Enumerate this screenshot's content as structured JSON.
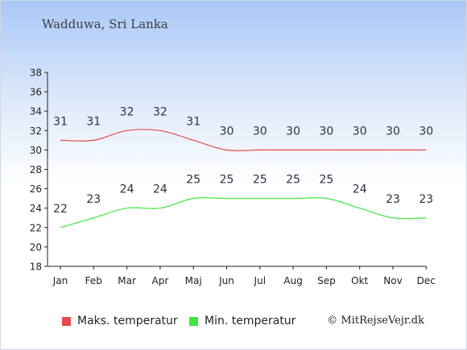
{
  "title": "Wadduwa, Sri Lanka",
  "copyright": "© MitRejseVejr.dk",
  "chart_data": {
    "type": "line",
    "categories": [
      "Jan",
      "Feb",
      "Mar",
      "Apr",
      "Maj",
      "Jun",
      "Jul",
      "Aug",
      "Sep",
      "Okt",
      "Nov",
      "Dec"
    ],
    "ylim": [
      18,
      38
    ],
    "yticks": [
      18,
      20,
      22,
      24,
      26,
      28,
      30,
      32,
      34,
      36,
      38
    ],
    "grid": false,
    "legend_placement": "bottom",
    "series": [
      {
        "name": "Maks. temperatur",
        "color": "#e64c4c",
        "values": [
          31,
          31,
          32,
          32,
          31,
          30,
          30,
          30,
          30,
          30,
          30,
          30
        ]
      },
      {
        "name": "Min. temperatur",
        "color": "#3ee63e",
        "values": [
          22,
          23,
          24,
          24,
          25,
          25,
          25,
          25,
          25,
          24,
          23,
          23
        ]
      }
    ]
  }
}
